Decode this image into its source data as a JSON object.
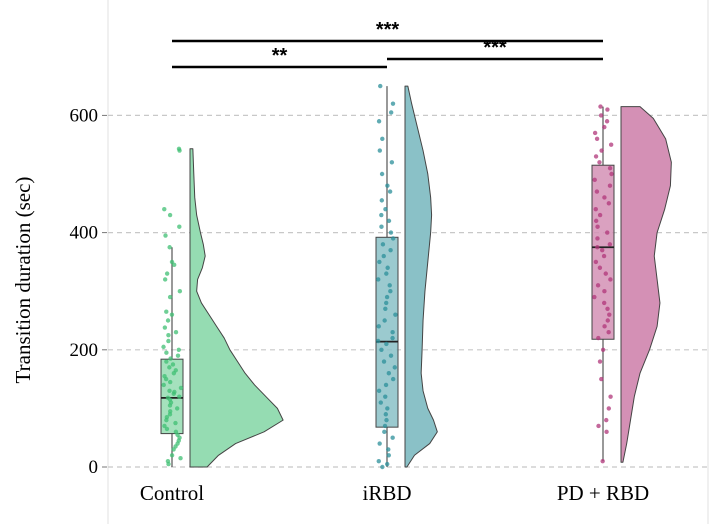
{
  "chart_data": {
    "type": "raincloud",
    "ylabel": "Transition duration (sec)",
    "ylim": [
      0,
      650
    ],
    "yticks": [
      "0",
      "200",
      "400",
      "600"
    ],
    "grid": "horizontal dashed",
    "categories": [
      "Control",
      "iRBD",
      "PD + RBD"
    ],
    "colors": {
      "Control": "#3fbf73",
      "iRBD": "#2b8f99",
      "PD + RBD": "#b03579"
    },
    "groups": [
      {
        "name": "Control",
        "box": {
          "whisker_low": 0,
          "q1": 57,
          "median": 118,
          "q3": 184,
          "whisker_high": 375,
          "max": 543
        },
        "density": [
          [
            0,
            0.18
          ],
          [
            20,
            0.3
          ],
          [
            40,
            0.48
          ],
          [
            60,
            0.78
          ],
          [
            80,
            0.98
          ],
          [
            100,
            0.92
          ],
          [
            120,
            0.8
          ],
          [
            140,
            0.68
          ],
          [
            160,
            0.58
          ],
          [
            180,
            0.5
          ],
          [
            200,
            0.42
          ],
          [
            220,
            0.36
          ],
          [
            240,
            0.28
          ],
          [
            260,
            0.2
          ],
          [
            280,
            0.12
          ],
          [
            300,
            0.07
          ],
          [
            320,
            0.08
          ],
          [
            340,
            0.13
          ],
          [
            360,
            0.16
          ],
          [
            380,
            0.14
          ],
          [
            400,
            0.11
          ],
          [
            430,
            0.07
          ],
          [
            460,
            0.05
          ],
          [
            500,
            0.04
          ],
          [
            543,
            0.03
          ]
        ],
        "points": [
          543,
          540,
          440,
          430,
          410,
          395,
          375,
          350,
          345,
          330,
          320,
          300,
          290,
          265,
          260,
          250,
          238,
          230,
          225,
          215,
          205,
          200,
          195,
          190,
          185,
          180,
          175,
          170,
          165,
          160,
          155,
          150,
          145,
          140,
          135,
          130,
          128,
          125,
          120,
          118,
          115,
          110,
          105,
          100,
          95,
          90,
          85,
          80,
          75,
          70,
          65,
          60,
          55,
          50,
          45,
          40,
          35,
          30,
          20,
          15,
          10,
          5
        ]
      },
      {
        "name": "iRBD",
        "box": {
          "whisker_low": 0,
          "q1": 68,
          "median": 214,
          "q3": 392,
          "whisker_high": 650,
          "max": 650
        },
        "density": [
          [
            0,
            0.02
          ],
          [
            20,
            0.1
          ],
          [
            40,
            0.26
          ],
          [
            60,
            0.34
          ],
          [
            80,
            0.3
          ],
          [
            100,
            0.24
          ],
          [
            130,
            0.19
          ],
          [
            160,
            0.17
          ],
          [
            200,
            0.18
          ],
          [
            250,
            0.19
          ],
          [
            300,
            0.21
          ],
          [
            350,
            0.24
          ],
          [
            400,
            0.27
          ],
          [
            430,
            0.28
          ],
          [
            460,
            0.27
          ],
          [
            500,
            0.24
          ],
          [
            540,
            0.19
          ],
          [
            580,
            0.13
          ],
          [
            620,
            0.07
          ],
          [
            650,
            0.03
          ]
        ],
        "points": [
          650,
          620,
          605,
          590,
          560,
          540,
          520,
          500,
          480,
          470,
          455,
          440,
          430,
          420,
          410,
          400,
          390,
          380,
          370,
          360,
          350,
          340,
          330,
          320,
          310,
          300,
          290,
          280,
          270,
          260,
          250,
          240,
          230,
          220,
          215,
          210,
          200,
          190,
          180,
          170,
          160,
          150,
          140,
          130,
          120,
          110,
          100,
          90,
          80,
          70,
          60,
          50,
          40,
          30,
          20,
          10,
          5,
          0
        ]
      },
      {
        "name": "PD + RBD",
        "box": {
          "whisker_low": 10,
          "q1": 218,
          "median": 375,
          "q3": 515,
          "whisker_high": 615,
          "max": 615
        },
        "density": [
          [
            8,
            0.02
          ],
          [
            40,
            0.06
          ],
          [
            80,
            0.1
          ],
          [
            120,
            0.14
          ],
          [
            160,
            0.2
          ],
          [
            200,
            0.3
          ],
          [
            240,
            0.38
          ],
          [
            280,
            0.41
          ],
          [
            320,
            0.38
          ],
          [
            360,
            0.35
          ],
          [
            400,
            0.38
          ],
          [
            440,
            0.46
          ],
          [
            480,
            0.52
          ],
          [
            520,
            0.53
          ],
          [
            560,
            0.47
          ],
          [
            595,
            0.34
          ],
          [
            615,
            0.2
          ]
        ],
        "points": [
          615,
          610,
          600,
          590,
          580,
          570,
          560,
          550,
          540,
          530,
          520,
          510,
          500,
          490,
          480,
          470,
          460,
          450,
          440,
          430,
          420,
          410,
          400,
          390,
          380,
          375,
          370,
          360,
          350,
          340,
          330,
          320,
          310,
          300,
          290,
          280,
          270,
          260,
          250,
          240,
          230,
          220,
          200,
          180,
          150,
          120,
          100,
          80,
          70,
          60,
          10
        ]
      }
    ],
    "comparisons": [
      {
        "from": "Control",
        "to": "PD + RBD",
        "label": "***"
      },
      {
        "from": "Control",
        "to": "iRBD",
        "label": "**"
      },
      {
        "from": "iRBD",
        "to": "PD + RBD",
        "label": "***"
      }
    ]
  }
}
